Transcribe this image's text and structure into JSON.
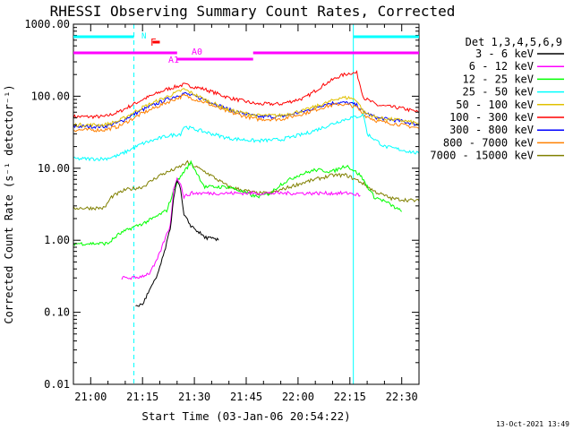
{
  "chart_data": {
    "type": "line",
    "title": "RHESSI Observing Summary Count Rates, Corrected",
    "ylabel": "Corrected Count Rate (s⁻¹ detector⁻¹)",
    "xlabel": "Start Time (03-Jan-06 20:54:22)",
    "footer": "13-Oct-2021 13:49",
    "yscale": "log",
    "ylim": [
      0.01,
      1000
    ],
    "ytick_values": [
      0.01,
      0.1,
      1,
      10,
      100,
      1000
    ],
    "ytick_labels": [
      "0.01",
      "0.10",
      "1.00",
      "10.00",
      "100.00",
      "1000.00"
    ],
    "xlim_minutes": [
      -5,
      95
    ],
    "xtick_values": [
      0,
      15,
      30,
      45,
      60,
      75,
      90
    ],
    "xtick_labels": [
      "21:00",
      "21:15",
      "21:30",
      "21:45",
      "22:00",
      "22:15",
      "22:30"
    ],
    "legend": {
      "title": "Det 1,3,4,5,6,9",
      "entries": [
        {
          "label": "3 - 6 keV",
          "color": "#000000"
        },
        {
          "label": "6 - 12 keV",
          "color": "#ff00ff"
        },
        {
          "label": "12 - 25 keV",
          "color": "#00ff00"
        },
        {
          "label": "25 - 50 keV",
          "color": "#00ffff"
        },
        {
          "label": "50 - 100 keV",
          "color": "#e0c000"
        },
        {
          "label": "100 - 300 keV",
          "color": "#ff0000"
        },
        {
          "label": "300 - 800 keV",
          "color": "#0000ff"
        },
        {
          "label": "800 - 7000 keV",
          "color": "#ff8000"
        },
        {
          "label": "7000 - 15000 keV",
          "color": "#808000"
        }
      ]
    },
    "series": [
      {
        "color": "#ff0000",
        "x": [
          -5,
          4,
          8,
          15,
          22,
          27,
          33,
          40,
          48,
          55,
          62,
          68,
          72,
          75,
          77,
          79,
          83,
          90,
          95
        ],
        "y": [
          52,
          52,
          60,
          90,
          125,
          145,
          125,
          95,
          78,
          78,
          95,
          150,
          190,
          210,
          210,
          95,
          75,
          68,
          60
        ]
      },
      {
        "color": "#0000ff",
        "x": [
          -5,
          4,
          8,
          15,
          22,
          27,
          33,
          40,
          48,
          55,
          62,
          68,
          72,
          75,
          77,
          79,
          83,
          90,
          95
        ],
        "y": [
          38,
          38,
          43,
          65,
          90,
          110,
          90,
          65,
          52,
          52,
          62,
          78,
          82,
          80,
          75,
          60,
          50,
          45,
          40
        ]
      },
      {
        "color": "#ff8000",
        "x": [
          -5,
          4,
          8,
          15,
          22,
          27,
          33,
          40,
          48,
          55,
          62,
          68,
          72,
          75,
          77,
          79,
          83,
          90,
          95
        ],
        "y": [
          34,
          34,
          38,
          58,
          82,
          102,
          82,
          60,
          48,
          48,
          58,
          72,
          78,
          75,
          70,
          55,
          45,
          40,
          36
        ]
      },
      {
        "color": "#e0c000",
        "x": [
          -5,
          4,
          8,
          15,
          22,
          27,
          33,
          40,
          48,
          55,
          62,
          68,
          72,
          75,
          77,
          79,
          83,
          90,
          95
        ],
        "y": [
          40,
          40,
          45,
          70,
          98,
          125,
          90,
          64,
          54,
          54,
          64,
          80,
          95,
          95,
          88,
          60,
          50,
          46,
          42
        ]
      },
      {
        "color": "#00ffff",
        "x": [
          -5,
          4,
          8,
          15,
          22,
          26,
          27,
          33,
          40,
          48,
          55,
          62,
          68,
          72,
          75,
          77,
          79,
          80,
          85,
          90,
          95
        ],
        "y": [
          13.5,
          13.5,
          15,
          22,
          28,
          30,
          38,
          32,
          26,
          24,
          25,
          30,
          38,
          45,
          50,
          52,
          55,
          30,
          20,
          18,
          16
        ]
      },
      {
        "color": "#808000",
        "x": [
          -5,
          4,
          6,
          10,
          15,
          20,
          25,
          28,
          33,
          40,
          48,
          52,
          55,
          60,
          65,
          70,
          74,
          78,
          82,
          87,
          95
        ],
        "y": [
          2.8,
          2.8,
          4.0,
          5.0,
          5.5,
          8.0,
          10,
          12,
          9,
          5.5,
          4.5,
          4.5,
          5,
          6,
          7,
          8,
          8,
          6.5,
          4.8,
          3.8,
          3.5
        ]
      },
      {
        "color": "#00ff00",
        "x": [
          -5,
          5,
          8,
          12,
          15,
          18,
          22,
          25,
          27,
          29,
          33,
          40,
          48,
          52,
          55,
          60,
          65,
          70,
          74,
          78,
          82,
          85,
          90
        ],
        "y": [
          0.9,
          0.9,
          1.2,
          1.5,
          1.7,
          2.0,
          2.6,
          6.5,
          9,
          12,
          5.5,
          5.5,
          4,
          4.5,
          6,
          8,
          9.5,
          9,
          11,
          8,
          4,
          3.5,
          2.5
        ]
      },
      {
        "color": "#ff00ff",
        "x": [
          9,
          13,
          15,
          17,
          19,
          21,
          23,
          24,
          25,
          26,
          27,
          29,
          33,
          40,
          48,
          55,
          62,
          70,
          75,
          78
        ],
        "y": [
          0.3,
          0.3,
          0.32,
          0.35,
          0.5,
          0.9,
          1.6,
          5,
          7.5,
          6,
          4,
          4.5,
          4.5,
          4.5,
          4.5,
          4.5,
          4.5,
          4.5,
          4.5,
          4.2
        ]
      },
      {
        "color": "#000000",
        "x": [
          13,
          15,
          17,
          19,
          21,
          23,
          24,
          25,
          26,
          27,
          29,
          33,
          37
        ],
        "y": [
          0.12,
          0.13,
          0.2,
          0.3,
          0.6,
          1.4,
          4,
          7,
          5,
          2.2,
          1.6,
          1.1,
          1.0
        ]
      }
    ],
    "cyan_lines_minutes": [
      -5,
      12.5,
      76,
      95
    ],
    "cyan_solid": [
      -5,
      76
    ],
    "attenuator_labels": [
      {
        "text": "N",
        "color": "#00ffff"
      },
      {
        "text": "F",
        "color": "#ff0000"
      },
      {
        "text": "A1",
        "color": "#ff00ff"
      },
      {
        "text": "A0",
        "color": "#ff00ff"
      }
    ]
  }
}
